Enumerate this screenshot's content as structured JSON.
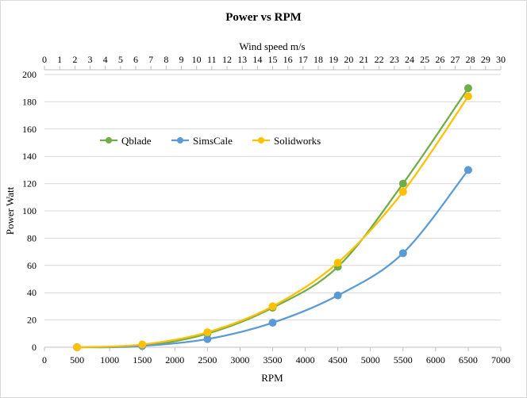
{
  "chart_data": {
    "type": "line",
    "title": "Power vs RPM",
    "xlabel": "RPM",
    "ylabel": "Power Watt",
    "secondary_xlabel": "Wind speed m/s",
    "x": [
      500,
      1500,
      2500,
      3500,
      4500,
      5500,
      6500
    ],
    "xlim": [
      0,
      7000
    ],
    "xticks": [
      "0",
      "500",
      "1000",
      "1500",
      "2000",
      "2500",
      "3000",
      "3500",
      "4000",
      "4500",
      "5000",
      "5500",
      "6000",
      "6500",
      "7000"
    ],
    "secondary_xlim": [
      0,
      30
    ],
    "secondary_xticks": [
      "0",
      "1",
      "2",
      "3",
      "4",
      "5",
      "6",
      "7",
      "8",
      "9",
      "10",
      "11",
      "12",
      "13",
      "14",
      "15",
      "16",
      "17",
      "18",
      "19",
      "20",
      "21",
      "22",
      "23",
      "24",
      "25",
      "26",
      "27",
      "28",
      "29",
      "30"
    ],
    "ylim": [
      0,
      200
    ],
    "yticks": [
      "0",
      "20",
      "40",
      "60",
      "80",
      "100",
      "120",
      "140",
      "160",
      "180",
      "200"
    ],
    "grid": true,
    "legend_position": "inside-upper-left",
    "series": [
      {
        "name": "Qblade",
        "color": "#70ad47",
        "values": [
          0,
          1,
          10,
          29,
          59,
          120,
          190
        ]
      },
      {
        "name": "SimsCale",
        "color": "#5b9bd5",
        "values": [
          0,
          1,
          6,
          18,
          38,
          69,
          130
        ]
      },
      {
        "name": "Solidworks",
        "color": "#ffc000",
        "values": [
          0,
          2,
          11,
          30,
          62,
          114,
          184
        ]
      }
    ]
  }
}
